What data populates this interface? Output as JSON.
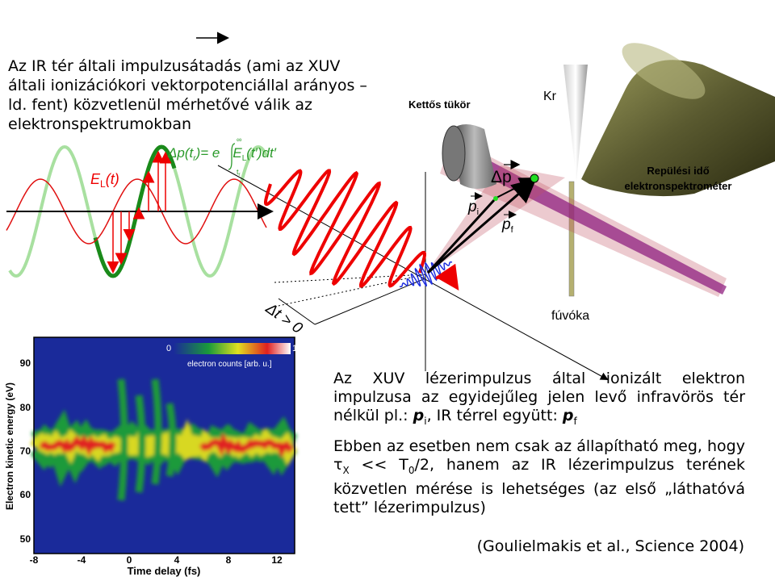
{
  "intro": [
    "Az IR tér általi impulzusátadás (ami az XUV",
    "általi ionizációkori vektorpotenciállal arányos –",
    "ld. fent) közvetlenül mérhetővé válik az",
    "elektronspektrumokban"
  ],
  "formula": {
    "lhs": "Δp(t",
    "lhs_sub": "r",
    "eq": ")= e",
    "upper": "∞",
    "lower": "t",
    "lower_sub": "r",
    "field": "E",
    "field_sub": "L",
    "rest": "(t′)dt′"
  },
  "labels": {
    "field": "E",
    "field_sub": "L",
    "field_arg": "(t)",
    "delay": "Δt > 0",
    "mirror": "Kettős tükör",
    "kr": "Kr",
    "spectrometer": [
      "Repülési idő",
      "elektronspektrométer"
    ],
    "nozzle": "fúvóka",
    "dp": "Δp",
    "pi": "p",
    "pi_sub": "i",
    "pf": "p",
    "pf_sub": "f"
  },
  "paragraph1": [
    "Az XUV lézerimpulzus által ionizált elektron impulzusa az egyidejűleg jelen levő infravörös tér nélkül pl.: ",
    "p",
    "i",
    ", IR térrel együtt: ",
    "p",
    "f"
  ],
  "paragraph2": [
    "Ebben az esetben nem csak az állapítható meg, hogy ",
    "τ",
    "X",
    " << T",
    "0",
    "/2, hanem az IR lézerimpulzus terének közvetlen mérése is lehetséges (az első „láthatóvá tett” lézerimpulzus)"
  ],
  "citation": "(Goulielmakis et al., Science 2004)",
  "spectrogram": {
    "ylabel": "Electron kinetic energy (eV)",
    "xlabel": "Time delay (fs)",
    "yticks": [
      "90",
      "80",
      "70",
      "60",
      "50"
    ],
    "xticks": [
      "-8",
      "-4",
      "0",
      "4",
      "8",
      "12"
    ],
    "colorbar": {
      "min": "0",
      "max": "1",
      "label": "electron counts [arb. u.]"
    }
  }
}
